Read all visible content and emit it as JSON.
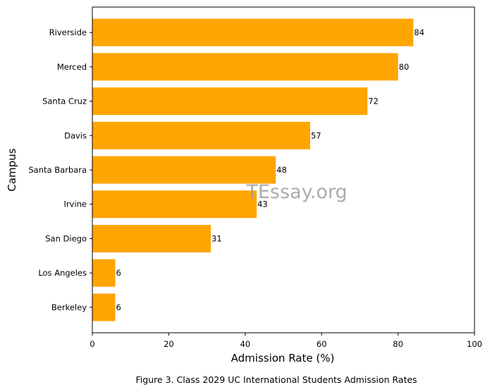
{
  "chart_data": {
    "type": "bar",
    "orientation": "horizontal",
    "categories": [
      "Berkeley",
      "Los Angeles",
      "San Diego",
      "Irvine",
      "Santa Barbara",
      "Davis",
      "Santa Cruz",
      "Merced",
      "Riverside"
    ],
    "values": [
      6,
      6,
      31,
      43,
      48,
      57,
      72,
      80,
      84
    ],
    "data_labels": [
      "6",
      "6",
      "31",
      "43",
      "48",
      "57",
      "72",
      "80",
      "84"
    ],
    "xlabel": "Admission Rate (%)",
    "ylabel": "Campus",
    "xlim": [
      0,
      100
    ],
    "xticks": [
      0,
      20,
      40,
      60,
      80,
      100
    ],
    "bar_color": "#FFA500",
    "grid": false,
    "caption": "Figure 3. Class 2029 UC International Students Admission Rates",
    "watermark": "TEssay.org"
  }
}
